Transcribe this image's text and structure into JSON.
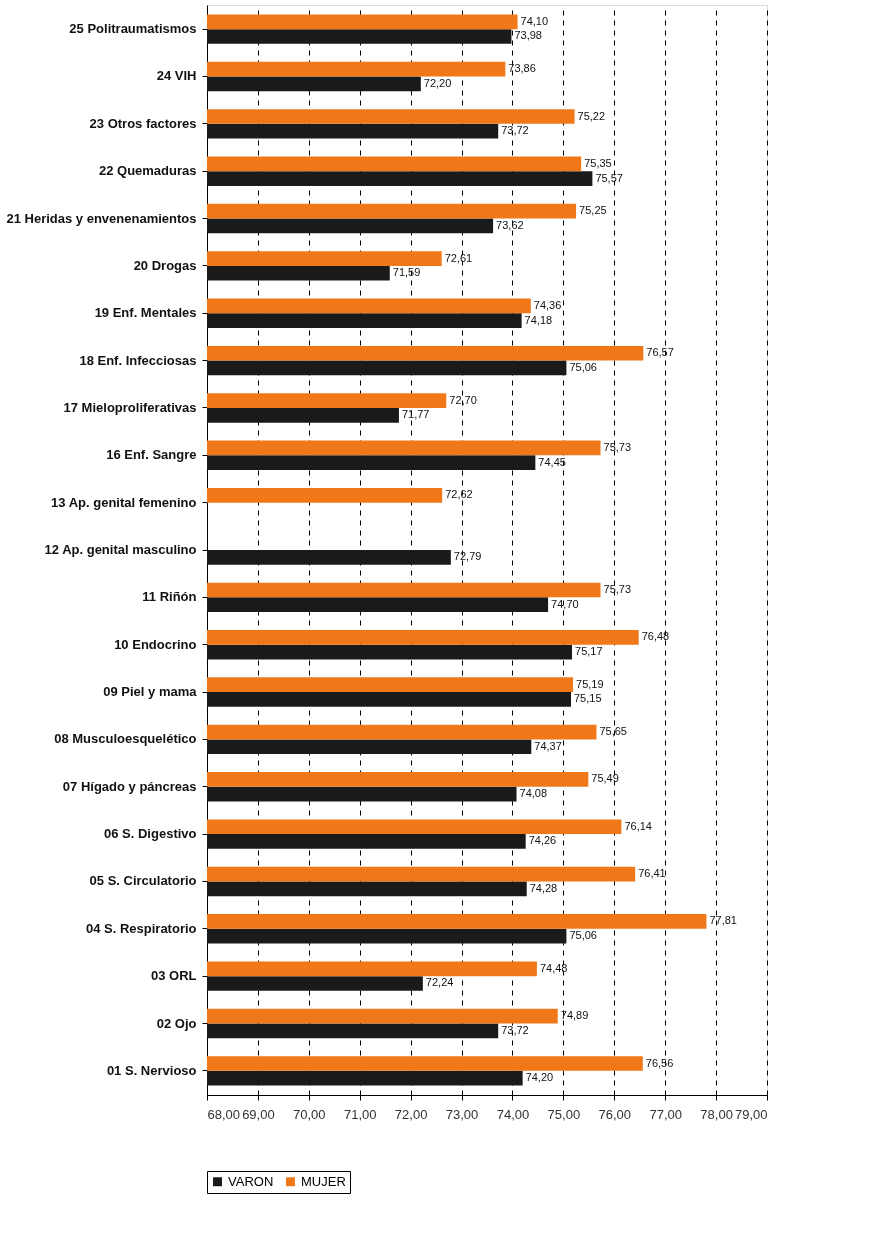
{
  "chart_data": {
    "type": "bar",
    "orientation": "horizontal",
    "categories": [
      "25 Politraumatismos",
      "24 VIH",
      "23 Otros factores",
      "22 Quemaduras",
      "21 Heridas y envenenamientos",
      "20 Drogas",
      "19 Enf. Mentales",
      "18 Enf. Infecciosas",
      "17 Mieloproliferativas",
      "16 Enf. Sangre",
      "13 Ap. genital femenino",
      "12 Ap. genital masculino",
      "11 Riñón",
      "10 Endocrino",
      "09 Piel y mama",
      "08 Musculoesquelético",
      "07 Hígado y páncreas",
      "06 S. Digestivo",
      "05 S. Circulatorio",
      "04 S. Respiratorio",
      "03 ORL",
      "02 Ojo",
      "01 S. Nervioso"
    ],
    "series": [
      {
        "name": "VARON",
        "color": "#1a1a1a",
        "values": [
          73.98,
          72.2,
          73.72,
          75.57,
          73.62,
          71.59,
          74.18,
          75.06,
          71.77,
          74.45,
          null,
          72.79,
          74.7,
          75.17,
          75.15,
          74.37,
          74.08,
          74.26,
          74.28,
          75.06,
          72.24,
          73.72,
          74.2
        ],
        "value_labels": [
          "73,98",
          "72,20",
          "73,72",
          "75,57",
          "73,62",
          "71,59",
          "74,18",
          "75,06",
          "71,77",
          "74,45",
          null,
          "72,79",
          "74,70",
          "75,17",
          "75,15",
          "74,37",
          "74,08",
          "74,26",
          "74,28",
          "75,06",
          "72,24",
          "73,72",
          "74,20"
        ]
      },
      {
        "name": "MUJER",
        "color": "#f07818",
        "values": [
          74.1,
          73.86,
          75.22,
          75.35,
          75.25,
          72.61,
          74.36,
          76.57,
          72.7,
          75.73,
          72.62,
          null,
          75.73,
          76.48,
          75.19,
          75.65,
          75.49,
          76.14,
          76.41,
          77.81,
          74.48,
          74.89,
          76.56
        ],
        "value_labels": [
          "74,10",
          "73,86",
          "75,22",
          "75,35",
          "75,25",
          "72,61",
          "74,36",
          "76,57",
          "72,70",
          "75,73",
          "72,62",
          null,
          "75,73",
          "76,48",
          "75,19",
          "75,65",
          "75,49",
          "76,14",
          "76,41",
          "77,81",
          "74,48",
          "74,89",
          "76,56"
        ]
      }
    ],
    "xlim": [
      68,
      79
    ],
    "xticks": [
      {
        "value": 68,
        "label": "68,00"
      },
      {
        "value": 69,
        "label": "69,00"
      },
      {
        "value": 70,
        "label": "70,00"
      },
      {
        "value": 71,
        "label": "71,00"
      },
      {
        "value": 72,
        "label": "72,00"
      },
      {
        "value": 73,
        "label": "73,00"
      },
      {
        "value": 74,
        "label": "74,00"
      },
      {
        "value": 75,
        "label": "75,00"
      },
      {
        "value": 76,
        "label": "76,00"
      },
      {
        "value": 77,
        "label": "77,00"
      },
      {
        "value": 78,
        "label": "78,00"
      },
      {
        "value": 79,
        "label": "79,00"
      }
    ],
    "grid": "x",
    "legend": "bottom"
  }
}
